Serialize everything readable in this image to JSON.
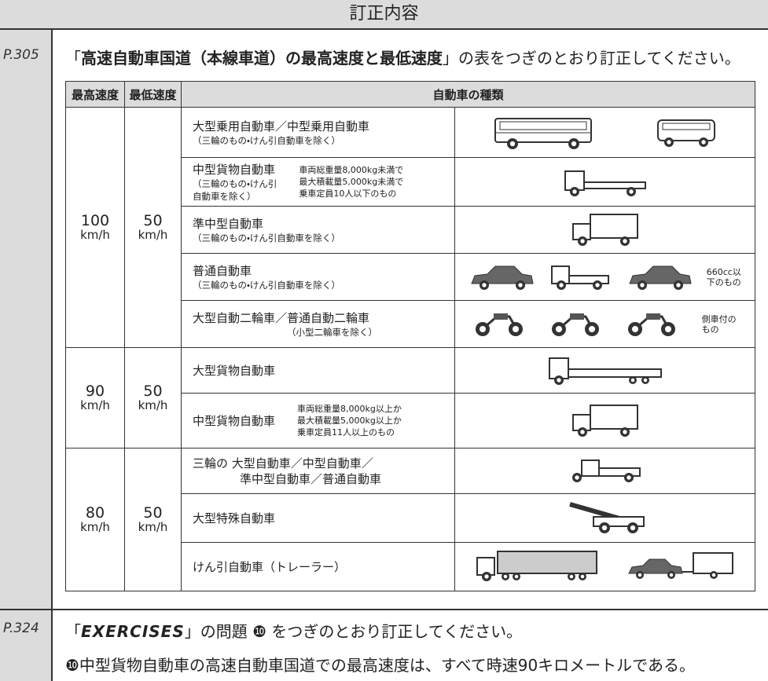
{
  "header": {
    "title": "訂正内容"
  },
  "sections": [
    {
      "page": "P.305",
      "intro": {
        "before": "「",
        "bold": "高速自動車国道（本線車道）の最高速度と最低速度",
        "after": "」の表をつぎのとおり訂正してください。"
      },
      "table": {
        "headers": [
          "最高速度",
          "最低速度",
          "自動車の種類"
        ],
        "groups": [
          {
            "max_speed": "100",
            "max_unit": "km/h",
            "min_speed": "50",
            "min_unit": "km/h",
            "rows": [
              {
                "name": [
                  "大型乗用自動車／中型乗用自動車"
                ],
                "note": [
                  "（三輪のもの・けん引自動車を除く）"
                ]
              },
              {
                "name": [
                  "中型貨物自動車"
                ],
                "note": [
                  "（三輪のもの・けん引",
                  "自動車を除く）"
                ],
                "conditions": [
                  "車両総重量8,000kg未満で",
                  "最大積載量5,000kg未満で",
                  "乗車定員10人以下のもの"
                ]
              },
              {
                "name": [
                  "準中型自動車"
                ],
                "note": [
                  "（三輪のもの・けん引自動車を除く）"
                ]
              },
              {
                "name": [
                  "普通自動車"
                ],
                "note": [
                  "（三輪のもの・けん引自動車を除く）"
                ],
                "labels": [
                  "660cc以",
                  "下のもの"
                ]
              },
              {
                "name": [
                  "大型自動二輪車／普通自動二輪車"
                ],
                "note": [
                  "（小型二輪車を除く）"
                ],
                "labels": [
                  "側車付の",
                  "もの"
                ]
              }
            ]
          },
          {
            "max_speed": "90",
            "max_unit": "km/h",
            "min_speed": "50",
            "min_unit": "km/h",
            "rows": [
              {
                "name": [
                  "大型貨物自動車"
                ]
              },
              {
                "name": [
                  "中型貨物自動車"
                ],
                "conditions": [
                  "車両総重量8,000kg以上か",
                  "最大積載量5,000kg以上か",
                  "乗車定員11人以上のもの"
                ]
              }
            ]
          },
          {
            "max_speed": "80",
            "max_unit": "km/h",
            "min_speed": "50",
            "min_unit": "km/h",
            "rows": [
              {
                "name": [
                  "三輪の 大型自動車／中型自動車／",
                  "準中型自動車／普通自動車"
                ]
              },
              {
                "name": [
                  "大型特殊自動車"
                ]
              },
              {
                "name": [
                  "けん引自動車（トレーラー）"
                ]
              }
            ]
          }
        ]
      }
    },
    {
      "page": "P.324",
      "line1": {
        "before": "「",
        "emphasis": "EXERCISES",
        "after": "」の問題 ❿ をつぎのとおり訂正してください。"
      },
      "line2": "❿中型貨物自動車の高速自動車国道での最高速度は、すべて時速90キロメートルである。"
    }
  ]
}
